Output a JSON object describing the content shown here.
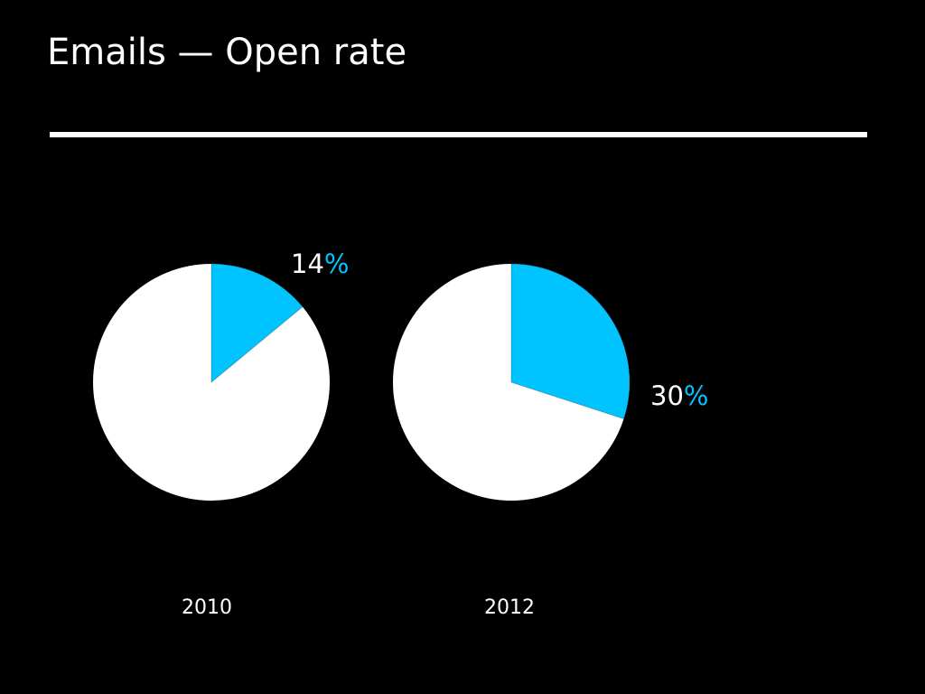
{
  "slide": {
    "title": "Emails — Open rate"
  },
  "colors": {
    "background": "#000000",
    "highlight": "#00C4FF",
    "remainder": "#FFFFFF",
    "text": "#FFFFFF"
  },
  "chart_data": [
    {
      "type": "pie",
      "category_label": "2010",
      "slices": [
        {
          "label": "open",
          "value": 14,
          "display_number": "14",
          "display_unit": "%"
        },
        {
          "label": "not opened",
          "value": 86
        }
      ]
    },
    {
      "type": "pie",
      "category_label": "2012",
      "slices": [
        {
          "label": "open",
          "value": 30,
          "display_number": "30",
          "display_unit": "%"
        },
        {
          "label": "not opened",
          "value": 70
        }
      ]
    }
  ]
}
